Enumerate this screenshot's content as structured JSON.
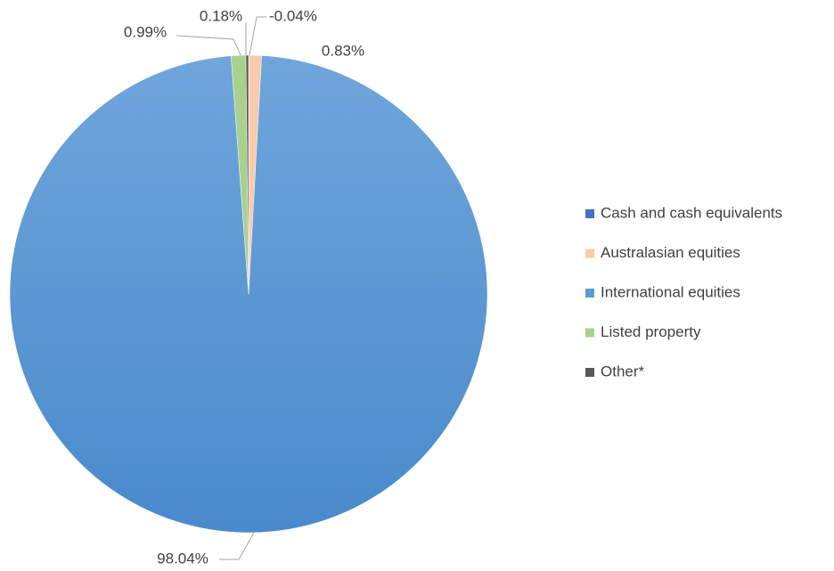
{
  "chart_data": {
    "type": "pie",
    "categories": [
      "Cash and cash equivalents",
      "Australasian equities",
      "International equities",
      "Listed property",
      "Other*"
    ],
    "values": [
      -0.04,
      0.83,
      98.04,
      0.99,
      0.18
    ],
    "value_labels": [
      "-0.04%",
      "0.83%",
      "98.04%",
      "0.99%",
      "0.18%"
    ],
    "colors": [
      "#4472c4",
      "#f8cbad",
      "#5b9bd5",
      "#a9d18e",
      "#595959"
    ],
    "legend": "right"
  }
}
